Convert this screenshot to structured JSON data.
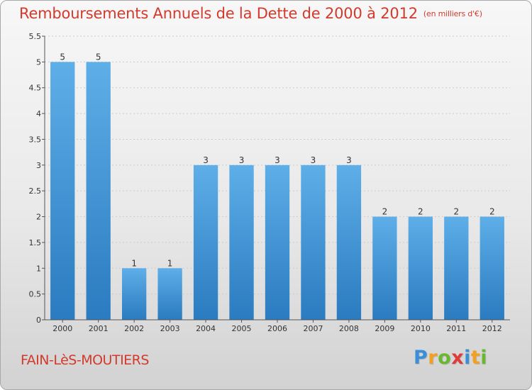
{
  "page": {
    "title": "Remboursements Annuels de la Dette de 2000 à 2012",
    "title_unit": "(en milliers d'€)",
    "commune": "FAIN-LèS-MOUTIERS",
    "logo_letters": [
      {
        "ch": "P",
        "color": "#3a8fd8"
      },
      {
        "ch": "r",
        "color": "#f2a020"
      },
      {
        "ch": "o",
        "color": "#69b82f"
      },
      {
        "ch": "x",
        "color": "#e03a3a"
      },
      {
        "ch": "i",
        "color": "#3a8fd8"
      },
      {
        "ch": "t",
        "color": "#f2a020"
      },
      {
        "ch": "i",
        "color": "#69b82f"
      }
    ]
  },
  "colors": {
    "title": "#d23a2c",
    "bar_top": "#5eaee8",
    "bar_bottom": "#2a7bc0",
    "axis": "#555555",
    "grid": "#cccccc"
  },
  "chart_data": {
    "type": "bar",
    "categories": [
      "2000",
      "2001",
      "2002",
      "2003",
      "2004",
      "2005",
      "2006",
      "2007",
      "2008",
      "2009",
      "2010",
      "2011",
      "2012"
    ],
    "values": [
      5,
      5,
      1,
      1,
      3,
      3,
      3,
      3,
      3,
      2,
      2,
      2,
      2
    ],
    "data_labels": [
      "5",
      "5",
      "1",
      "1",
      "3",
      "3",
      "3",
      "3",
      "3",
      "2",
      "2",
      "2",
      "2"
    ],
    "y_ticks": [
      "0",
      "0.5",
      "1",
      "1.5",
      "2",
      "2.5",
      "3",
      "3.5",
      "4",
      "4.5",
      "5",
      "5.5"
    ],
    "ylim": [
      0,
      5.5
    ],
    "grid": true
  }
}
